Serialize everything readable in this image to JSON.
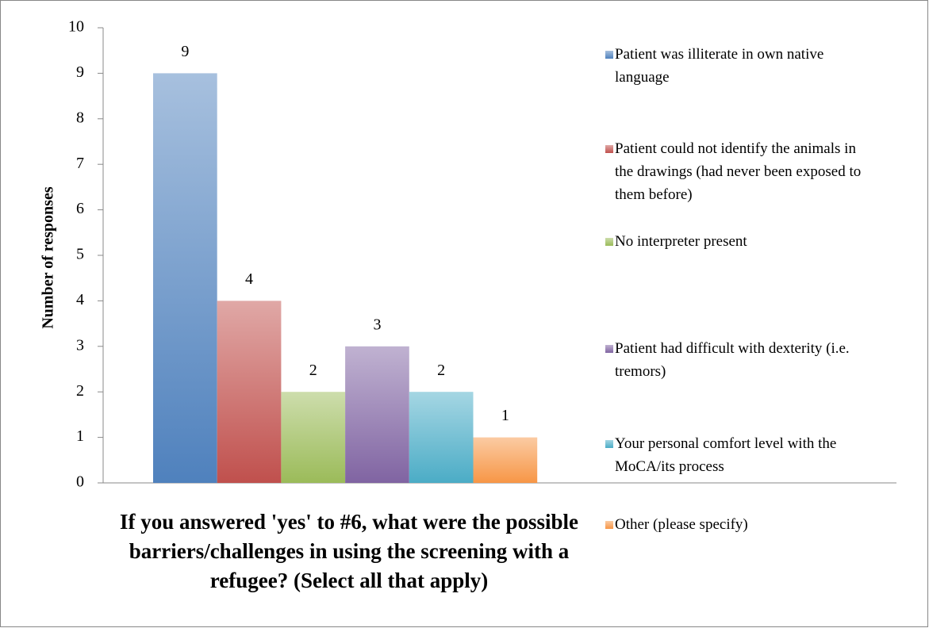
{
  "chart_data": {
    "type": "bar",
    "x_label": "If you answered 'yes' to #6, what were the possible barriers/challenges in using the screening with a refugee? (Select all that apply)",
    "y_label": "Number of responses",
    "categories": [
      null
    ],
    "series": [
      {
        "name": "Patient was illiterate in own native language",
        "color": "#4f81bd",
        "values": [
          9
        ]
      },
      {
        "name": "Patient could not identify the animals in the drawings (had never been exposed to them before)",
        "color": "#c0504d",
        "values": [
          4
        ]
      },
      {
        "name": "No interpreter present",
        "color": "#9bbb59",
        "values": [
          2
        ]
      },
      {
        "name": "Patient had difficult with dexterity (i.e. tremors)",
        "color": "#8064a2",
        "values": [
          3
        ]
      },
      {
        "name": "Your personal comfort level with the MoCA/its process",
        "color": "#4bacc6",
        "values": [
          2
        ]
      },
      {
        "name": "Other (please specify)",
        "color": "#f79646",
        "values": [
          1
        ]
      }
    ],
    "ylim": [
      0,
      10
    ],
    "yticks": [
      0,
      1,
      2,
      3,
      4,
      5,
      6,
      7,
      8,
      9,
      10
    ],
    "legend": "right"
  }
}
